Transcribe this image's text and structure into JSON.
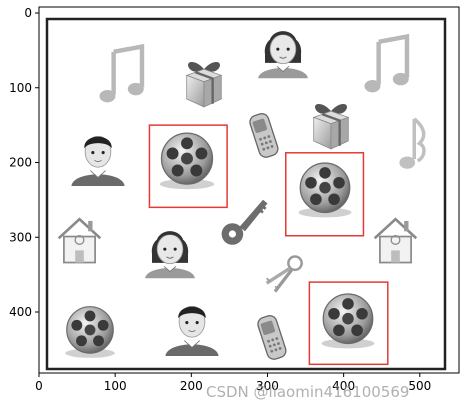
{
  "plot": {
    "x_ticks": [
      "0",
      "100",
      "200",
      "300",
      "400",
      "500"
    ],
    "y_ticks": [
      "0",
      "100",
      "200",
      "300",
      "400"
    ],
    "detection_box_color": "#e53935",
    "detections": [
      {
        "label": "film-reel",
        "x1": 145,
        "y1": 150,
        "x2": 247,
        "y2": 260
      },
      {
        "label": "film-reel",
        "x1": 324,
        "y1": 187,
        "x2": 426,
        "y2": 298
      },
      {
        "label": "film-reel",
        "x1": 355,
        "y1": 360,
        "x2": 458,
        "y2": 470
      }
    ],
    "icons": [
      {
        "icon": "music-note-icon",
        "x": 100
      },
      {
        "icon": "gift-box-icon",
        "x": 215
      },
      {
        "icon": "girl-face-icon",
        "x": 320
      },
      {
        "icon": "music-note-icon",
        "x": 470
      },
      {
        "icon": "boy-face-icon",
        "x": 75
      },
      {
        "icon": "mobile-phone-icon",
        "x": 300
      },
      {
        "icon": "gift-box-icon",
        "x": 390
      },
      {
        "icon": "music-note-icon",
        "x": 500
      },
      {
        "icon": "house-icon",
        "x": 55
      },
      {
        "icon": "girl-face-icon",
        "x": 175
      },
      {
        "icon": "key-icon",
        "x": 270
      },
      {
        "icon": "house-icon",
        "x": 475
      },
      {
        "icon": "film-reel-icon",
        "x": 70
      },
      {
        "icon": "boy-face-icon",
        "x": 205
      },
      {
        "icon": "keys-icon",
        "x": 320
      },
      {
        "icon": "mobile-phone-icon",
        "x": 305
      }
    ]
  },
  "watermark": "CSDN @liaomin416100569"
}
